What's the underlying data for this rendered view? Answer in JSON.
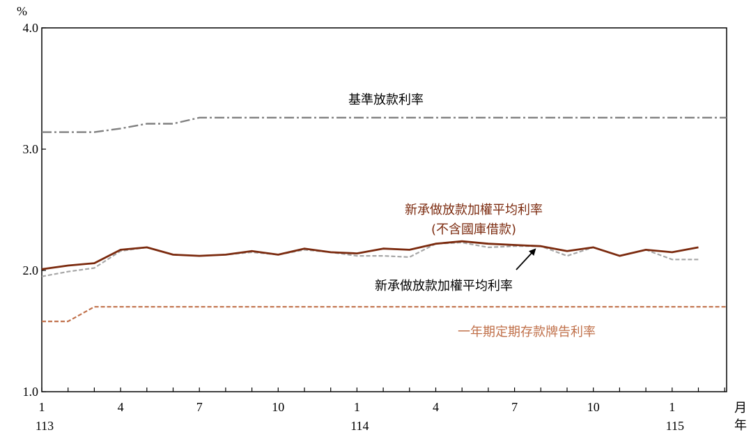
{
  "chart_data": {
    "type": "line",
    "ylabel": "%",
    "ylim": [
      1.0,
      4.0
    ],
    "yticks": [
      "1.0",
      "2.0",
      "3.0",
      "4.0"
    ],
    "y_tick_values": [
      1.0,
      2.0,
      3.0,
      4.0
    ],
    "x_tick_months": [
      "1",
      "4",
      "7",
      "10",
      "1",
      "4",
      "7",
      "10",
      "1"
    ],
    "x_year_labels": [
      "113",
      "114",
      "115"
    ],
    "x_unit_month": "月",
    "x_unit_year": "年",
    "x": [
      "113-01",
      "113-02",
      "113-03",
      "113-04",
      "113-05",
      "113-06",
      "113-07",
      "113-08",
      "113-09",
      "113-10",
      "113-11",
      "113-12",
      "114-01",
      "114-02",
      "114-03",
      "114-04",
      "114-05",
      "114-06",
      "114-07",
      "114-08",
      "114-09",
      "114-10",
      "114-11",
      "114-12",
      "115-01",
      "115-02",
      "115-03"
    ],
    "series": [
      {
        "name": "基準放款利率",
        "style": "dash-dot",
        "color": "#808080",
        "values": [
          3.14,
          3.14,
          3.14,
          3.17,
          3.21,
          3.21,
          3.26,
          3.26,
          3.26,
          3.26,
          3.26,
          3.26,
          3.26,
          3.26,
          3.26,
          3.26,
          3.26,
          3.26,
          3.26,
          3.26,
          3.26,
          3.26,
          3.26,
          3.26,
          3.26,
          3.26,
          3.26
        ]
      },
      {
        "name": "新承做放款加權平均利率",
        "style": "solid",
        "color": "#7b2a0e",
        "values": [
          2.01,
          2.04,
          2.06,
          2.17,
          2.19,
          2.13,
          2.12,
          2.13,
          2.16,
          2.13,
          2.18,
          2.15,
          2.14,
          2.18,
          2.17,
          2.22,
          2.24,
          2.22,
          2.21,
          2.2,
          2.16,
          2.19,
          2.12,
          2.17,
          2.15,
          2.19,
          null
        ]
      },
      {
        "name": "新承做放款加權平均利率 (不含國庫借款)",
        "style": "dashed",
        "color": "#a6a6a6",
        "values": [
          1.95,
          1.99,
          2.02,
          2.16,
          2.19,
          2.13,
          2.12,
          2.13,
          2.15,
          2.13,
          2.17,
          2.15,
          2.12,
          2.12,
          2.11,
          2.22,
          2.23,
          2.19,
          2.2,
          2.2,
          2.12,
          2.19,
          2.12,
          2.17,
          2.09,
          2.09,
          null
        ]
      },
      {
        "name": "一年期定期存款牌告利率",
        "style": "dashed",
        "color": "#c0704a",
        "values": [
          1.58,
          1.58,
          1.7,
          1.7,
          1.7,
          1.7,
          1.7,
          1.7,
          1.7,
          1.7,
          1.7,
          1.7,
          1.7,
          1.7,
          1.7,
          1.7,
          1.7,
          1.7,
          1.7,
          1.7,
          1.7,
          1.7,
          1.7,
          1.7,
          1.7,
          1.7,
          1.7
        ]
      }
    ],
    "annotations": {
      "base_rate": "基準放款利率",
      "excl_line1": "新承做放款加權平均利率",
      "excl_line2": "(不含國庫借款)",
      "weighted": "新承做放款加權平均利率",
      "deposit": "一年期定期存款牌告利率"
    }
  }
}
